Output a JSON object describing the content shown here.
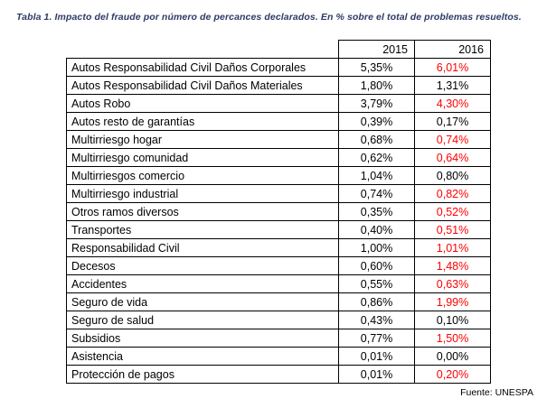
{
  "title": "Tabla 1. Impacto del fraude por número de percances declarados. En % sobre el total de problemas resueltos.",
  "source": "Fuente: UNESPA",
  "colors": {
    "title_accent": "#2d3a66",
    "highlight_value": "#ff0000",
    "text": "#000000",
    "border": "#000000",
    "background": "#ffffff"
  },
  "table": {
    "year_headers": [
      "2015",
      "2016"
    ],
    "rows": [
      {
        "label": "Autos Responsabilidad Civil Daños Corporales",
        "v2015": "5,35%",
        "v2016": "6,01%",
        "highlight_2016": true
      },
      {
        "label": "Autos Responsabilidad Civil Daños Materiales",
        "v2015": "1,80%",
        "v2016": "1,31%",
        "highlight_2016": false
      },
      {
        "label": "Autos Robo",
        "v2015": "3,79%",
        "v2016": "4,30%",
        "highlight_2016": true
      },
      {
        "label": "Autos resto de garantías",
        "v2015": "0,39%",
        "v2016": "0,17%",
        "highlight_2016": false
      },
      {
        "label": "Multirriesgo hogar",
        "v2015": "0,68%",
        "v2016": "0,74%",
        "highlight_2016": true
      },
      {
        "label": "Multirriesgo comunidad",
        "v2015": "0,62%",
        "v2016": "0,64%",
        "highlight_2016": true
      },
      {
        "label": "Multirriesgos comercio",
        "v2015": "1,04%",
        "v2016": "0,80%",
        "highlight_2016": false
      },
      {
        "label": "Multirriesgo industrial",
        "v2015": "0,74%",
        "v2016": "0,82%",
        "highlight_2016": true
      },
      {
        "label": "Otros ramos diversos",
        "v2015": "0,35%",
        "v2016": "0,52%",
        "highlight_2016": true
      },
      {
        "label": "Transportes",
        "v2015": "0,40%",
        "v2016": "0,51%",
        "highlight_2016": true
      },
      {
        "label": "Responsabilidad Civil",
        "v2015": "1,00%",
        "v2016": "1,01%",
        "highlight_2016": true
      },
      {
        "label": "Decesos",
        "v2015": "0,60%",
        "v2016": "1,48%",
        "highlight_2016": true
      },
      {
        "label": "Accidentes",
        "v2015": "0,55%",
        "v2016": "0,63%",
        "highlight_2016": true
      },
      {
        "label": "Seguro de vida",
        "v2015": "0,86%",
        "v2016": "1,99%",
        "highlight_2016": true
      },
      {
        "label": "Seguro de salud",
        "v2015": "0,43%",
        "v2016": "0,10%",
        "highlight_2016": false
      },
      {
        "label": "Subsidios",
        "v2015": "0,77%",
        "v2016": "1,50%",
        "highlight_2016": true
      },
      {
        "label": "Asistencia",
        "v2015": "0,01%",
        "v2016": "0,00%",
        "highlight_2016": false
      },
      {
        "label": "Protección de pagos",
        "v2015": "0,01%",
        "v2016": "0,20%",
        "highlight_2016": true
      }
    ]
  }
}
